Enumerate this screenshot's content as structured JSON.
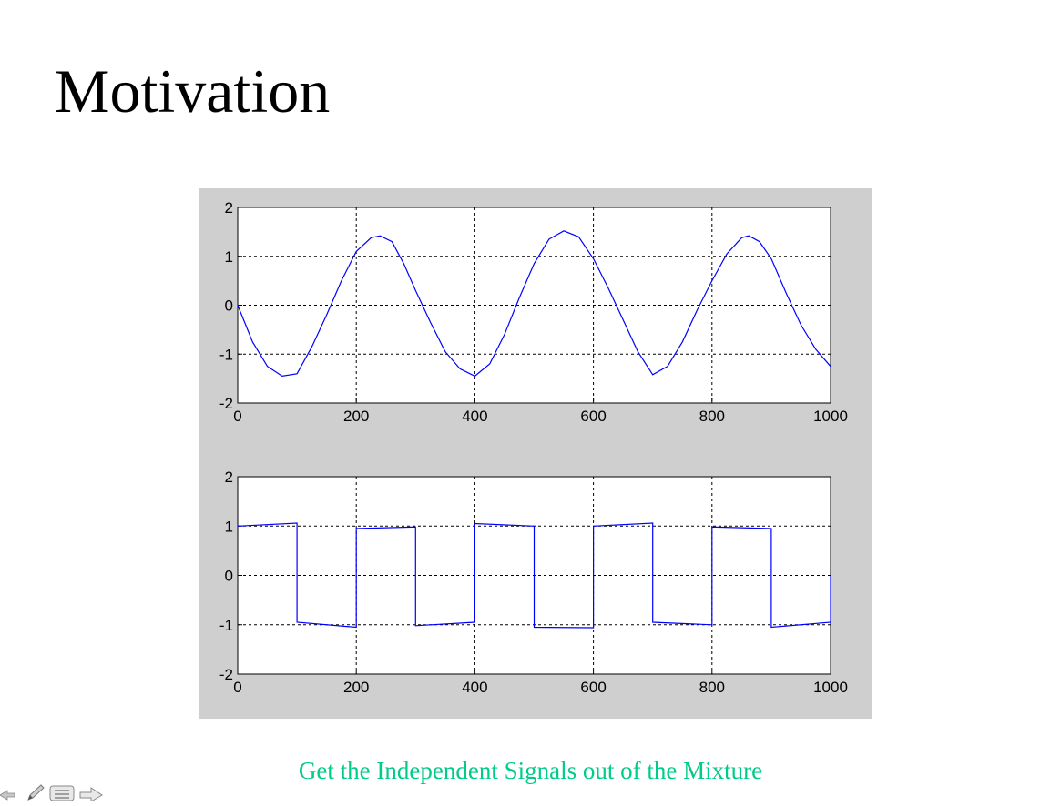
{
  "slide": {
    "title": "Motivation",
    "caption": "Get the Independent Signals out of the Mixture"
  },
  "colors": {
    "signal": "#0000ff",
    "figure_background": "#cfcfcf",
    "caption": "#00cc88"
  },
  "nav": {
    "icons": [
      "arrow-left-icon",
      "pencil-icon",
      "menu-icon",
      "arrow-right-icon"
    ]
  },
  "chart_data": [
    {
      "type": "line",
      "grid": true,
      "xlim": [
        0,
        1000
      ],
      "ylim": [
        -2,
        2
      ],
      "xticks": [
        0,
        200,
        400,
        600,
        800,
        1000
      ],
      "yticks": [
        -2,
        -1,
        0,
        1,
        2
      ],
      "series": [
        {
          "x": [
            0,
            25,
            50,
            75,
            100,
            125,
            150,
            175,
            200,
            225,
            240,
            260,
            280,
            300,
            325,
            350,
            375,
            400,
            425,
            450,
            475,
            500,
            525,
            550,
            575,
            600,
            625,
            650,
            675,
            700,
            725,
            750,
            775,
            800,
            825,
            850,
            862,
            880,
            900,
            925,
            950,
            975,
            1000
          ],
          "y": [
            0,
            -0.75,
            -1.25,
            -1.45,
            -1.4,
            -0.85,
            -0.2,
            0.5,
            1.1,
            1.38,
            1.42,
            1.3,
            0.85,
            0.3,
            -0.35,
            -0.95,
            -1.3,
            -1.45,
            -1.2,
            -0.6,
            0.15,
            0.85,
            1.35,
            1.52,
            1.4,
            0.95,
            0.35,
            -0.3,
            -0.95,
            -1.42,
            -1.25,
            -0.75,
            -0.1,
            0.5,
            1.05,
            1.38,
            1.42,
            1.3,
            0.95,
            0.25,
            -0.4,
            -0.9,
            -1.25
          ]
        }
      ]
    },
    {
      "type": "line",
      "grid": true,
      "xlim": [
        0,
        1000
      ],
      "ylim": [
        -2,
        2
      ],
      "xticks": [
        0,
        200,
        400,
        600,
        800,
        1000
      ],
      "yticks": [
        -2,
        -1,
        0,
        1,
        2
      ],
      "series": [
        {
          "x": [
            0,
            100,
            100,
            200,
            200,
            300,
            300,
            400,
            400,
            500,
            500,
            600,
            600,
            700,
            700,
            800,
            800,
            900,
            900,
            1000,
            1000
          ],
          "y": [
            1.0,
            1.06,
            -0.95,
            -1.05,
            0.95,
            0.98,
            -1.02,
            -0.95,
            1.05,
            1.0,
            -1.05,
            -1.06,
            1.0,
            1.06,
            -0.95,
            -1.0,
            0.98,
            0.95,
            -1.05,
            -0.95,
            0.0
          ]
        }
      ]
    }
  ]
}
